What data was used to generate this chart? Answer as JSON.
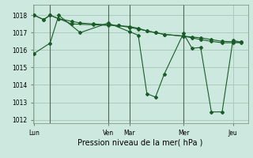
{
  "background_color": "#cce8df",
  "grid_color": "#aaccbb",
  "line_color": "#1a5c28",
  "xlabel": "Pression niveau de la mer( hPa )",
  "ylim": [
    1011.8,
    1018.6
  ],
  "yticks": [
    1012,
    1013,
    1014,
    1015,
    1016,
    1017,
    1018
  ],
  "xtick_labels": [
    "Lun",
    "Ven",
    "Mar",
    "Mer",
    "Jeu"
  ],
  "xtick_positions": [
    0.5,
    35,
    45,
    70,
    93
  ],
  "xlim": [
    0,
    100
  ],
  "series": [
    {
      "x": [
        0.5,
        8,
        12,
        22,
        35,
        45,
        49,
        53,
        57,
        61,
        70,
        74,
        78,
        83,
        88,
        93,
        97
      ],
      "y": [
        1015.8,
        1016.4,
        1018.0,
        1017.0,
        1017.55,
        1017.05,
        1016.85,
        1013.5,
        1013.3,
        1014.6,
        1016.95,
        1016.1,
        1016.15,
        1012.45,
        1012.45,
        1016.55,
        1016.45
      ]
    },
    {
      "x": [
        0.5,
        5,
        8,
        18,
        28,
        35,
        40,
        45,
        49,
        53,
        57,
        61,
        70,
        74,
        78,
        83,
        88,
        93,
        97
      ],
      "y": [
        1018.0,
        1017.75,
        1018.0,
        1017.5,
        1017.45,
        1017.42,
        1017.4,
        1017.3,
        1017.2,
        1017.1,
        1017.0,
        1016.9,
        1016.8,
        1016.7,
        1016.6,
        1016.5,
        1016.42,
        1016.42,
        1016.42
      ]
    },
    {
      "x": [
        0.5,
        5,
        8,
        12,
        18,
        22,
        28,
        35,
        40,
        45,
        49,
        53,
        57,
        61,
        70,
        74,
        78,
        83,
        88,
        93,
        97
      ],
      "y": [
        1018.0,
        1017.75,
        1018.0,
        1017.8,
        1017.65,
        1017.55,
        1017.5,
        1017.45,
        1017.4,
        1017.35,
        1017.25,
        1017.1,
        1017.0,
        1016.9,
        1016.8,
        1016.75,
        1016.7,
        1016.6,
        1016.5,
        1016.48,
        1016.45
      ]
    }
  ],
  "vlines_x": [
    8,
    35,
    45,
    70
  ],
  "vline_color": "#556655",
  "tick_fontsize": 5.5,
  "xlabel_fontsize": 7
}
